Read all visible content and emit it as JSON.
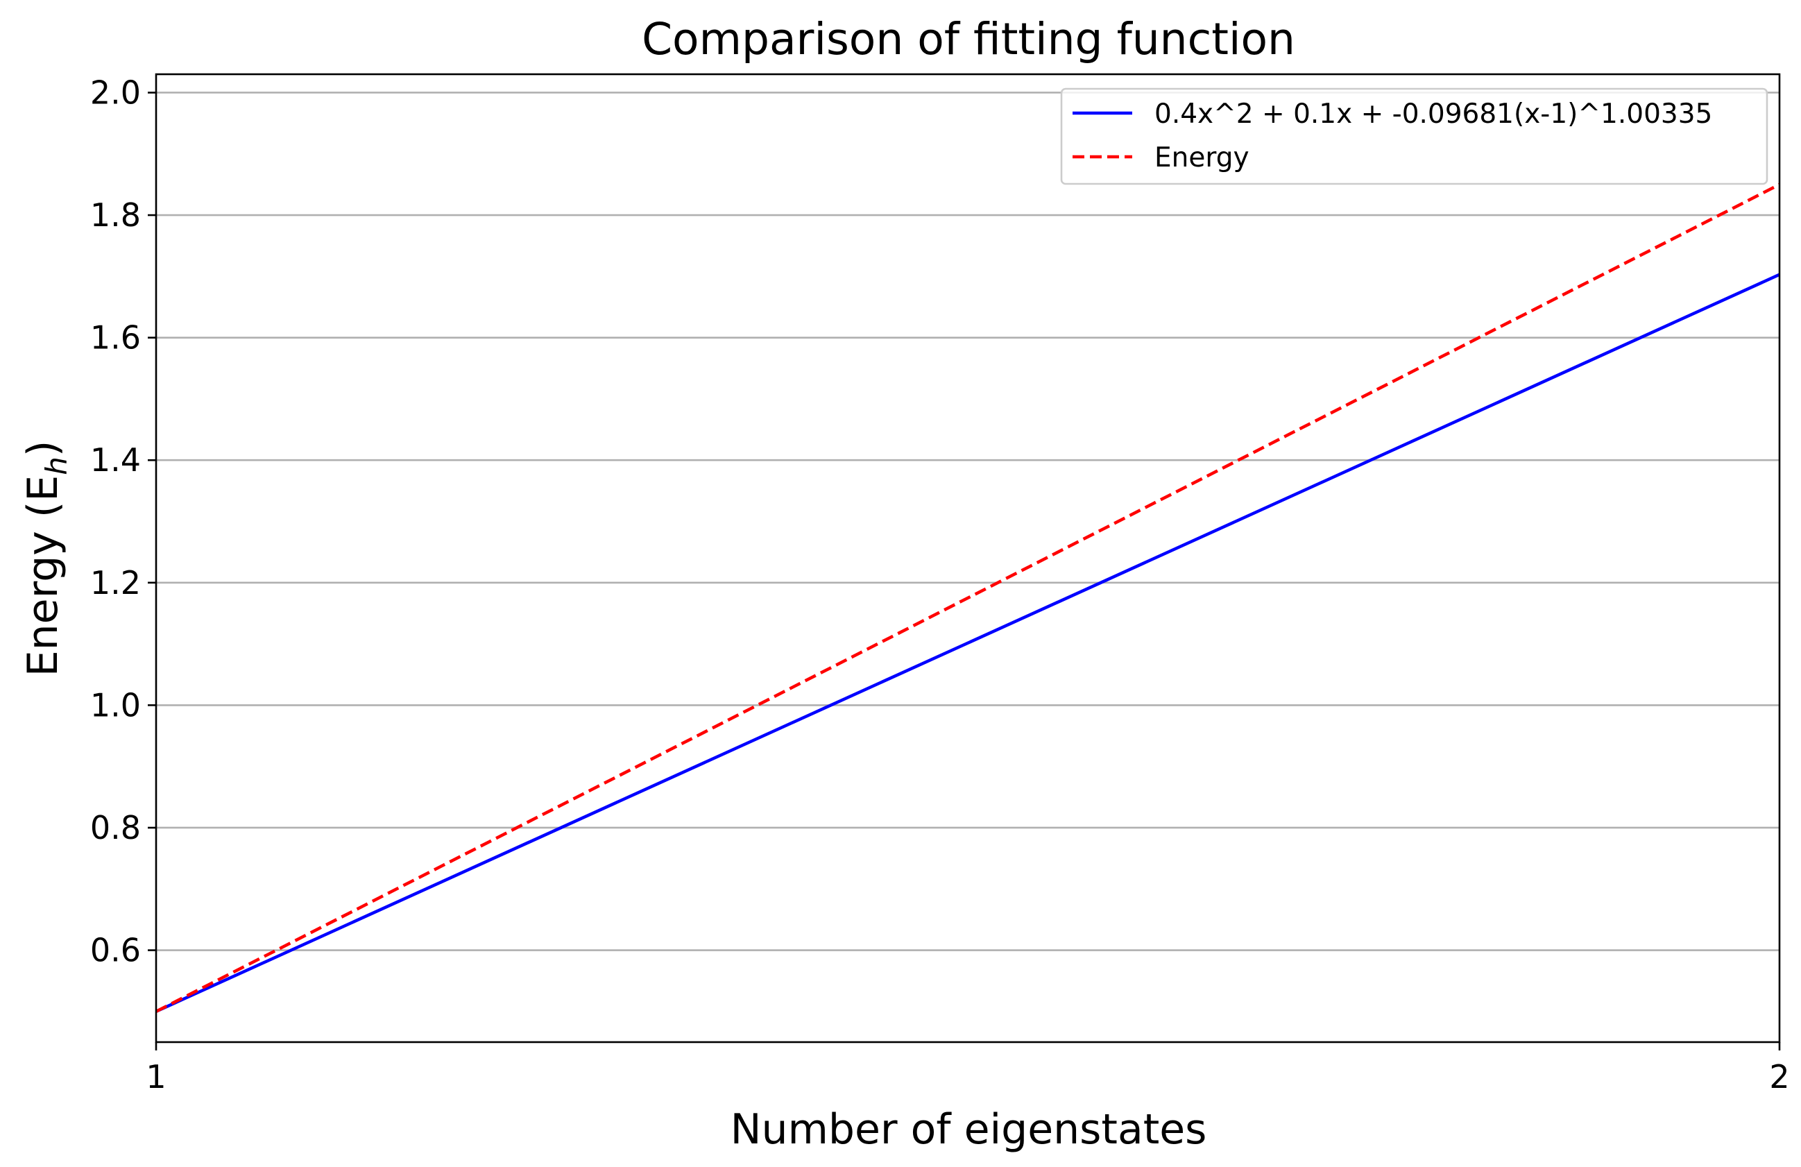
{
  "chart_data": {
    "type": "line",
    "title": "Comparison of fitting function",
    "xlabel": "Number of eigenstates",
    "ylabel_main": "Energy (E",
    "ylabel_sub": "h",
    "ylabel_close": ")",
    "xlim": [
      1,
      2
    ],
    "ylim": [
      0.45,
      2.03
    ],
    "xticks": [
      1,
      2
    ],
    "xtick_labels": [
      "1",
      "2"
    ],
    "yticks": [
      0.6,
      0.8,
      1.0,
      1.2,
      1.4,
      1.6,
      1.8,
      2.0
    ],
    "ytick_labels": [
      "0.6",
      "0.8",
      "1.0",
      "1.2",
      "1.4",
      "1.6",
      "1.8",
      "2.0"
    ],
    "grid": "horizontal",
    "legend_position": "top-right",
    "series": [
      {
        "name": "0.4x^2 + 0.1x + -0.09681(x-1)^1.00335",
        "x": [
          1,
          2
        ],
        "y": [
          0.5,
          1.703
        ],
        "color": "#0000ff",
        "style": "solid"
      },
      {
        "name": "Energy",
        "x": [
          1,
          2
        ],
        "y": [
          0.5,
          1.85
        ],
        "color": "#ff0000",
        "style": "dashed"
      }
    ]
  }
}
